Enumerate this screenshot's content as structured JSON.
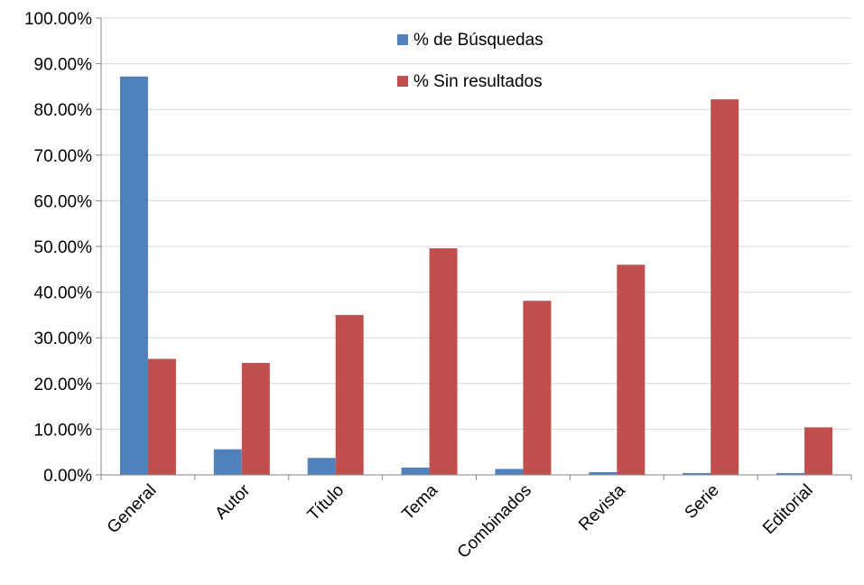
{
  "chart_data": {
    "type": "bar",
    "categories": [
      "General",
      "Autor",
      "Título",
      "Tema",
      "Combinados",
      "Revista",
      "Serie",
      "Editorial"
    ],
    "series": [
      {
        "name": "% de Búsquedas",
        "color": "#4F81BD",
        "values": [
          0.872,
          0.056,
          0.037,
          0.016,
          0.013,
          0.006,
          0.004,
          0.004
        ]
      },
      {
        "name": "% Sin resultados",
        "color": "#C0504D",
        "values": [
          0.254,
          0.245,
          0.35,
          0.496,
          0.381,
          0.46,
          0.822,
          0.104
        ]
      }
    ],
    "ylim": [
      0,
      1
    ],
    "yticks": [
      "0.00%",
      "10.00%",
      "20.00%",
      "30.00%",
      "40.00%",
      "50.00%",
      "60.00%",
      "70.00%",
      "80.00%",
      "90.00%",
      "100.00%"
    ],
    "grid": true,
    "legend_position": "top-center",
    "title": "",
    "xlabel": "",
    "ylabel": ""
  }
}
